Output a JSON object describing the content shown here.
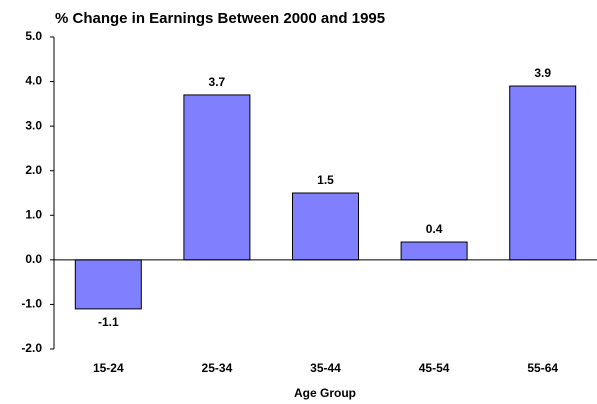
{
  "chart_data": {
    "type": "bar",
    "title": "% Change in Earnings Between 2000 and 1995",
    "x_label": "Age Group",
    "categories": [
      "15-24",
      "25-34",
      "35-44",
      "45-54",
      "55-64"
    ],
    "values": [
      -1.1,
      3.7,
      1.5,
      0.4,
      3.9
    ],
    "color": "#8080ff",
    "ylim": [
      -2,
      5
    ],
    "yticks": [
      {
        "value": -2,
        "label": "-2.0"
      },
      {
        "value": -1,
        "label": "-1.0"
      },
      {
        "value": 0,
        "label": "0.0"
      },
      {
        "value": 1,
        "label": "1.0"
      },
      {
        "value": 2,
        "label": "2.0"
      },
      {
        "value": 3,
        "label": "3.0"
      },
      {
        "value": 4,
        "label": "4.0"
      },
      {
        "value": 5,
        "label": "5.0"
      }
    ],
    "grid": false
  }
}
